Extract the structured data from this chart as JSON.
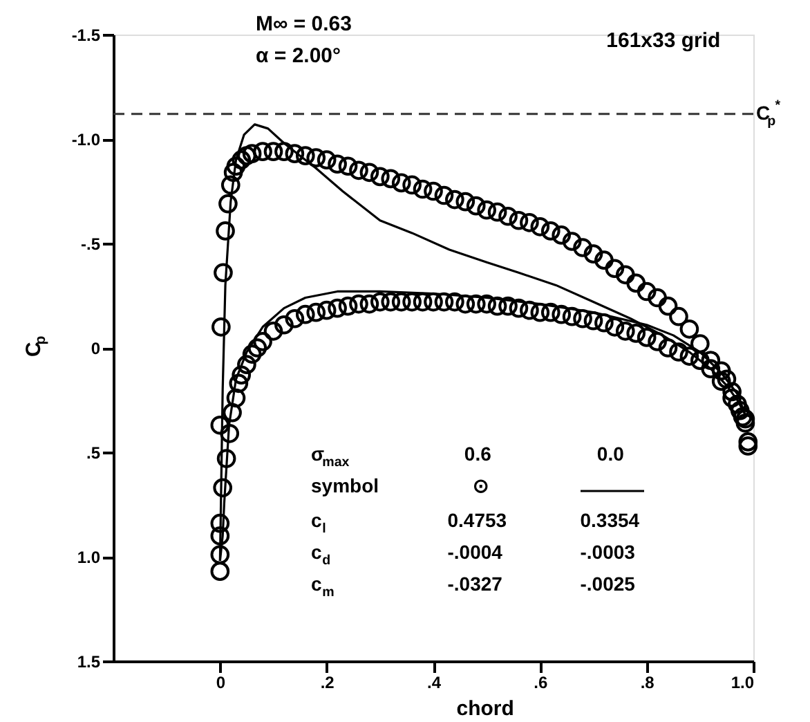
{
  "chart_data": {
    "type": "line",
    "xlabel": "chord",
    "ylabel": "C$_{p}$",
    "xlim": [
      -0.2,
      1.0
    ],
    "ylim": [
      1.5,
      -1.5
    ],
    "xticks": [
      {
        "value": 0,
        "label": "0"
      },
      {
        "value": 0.2,
        "label": ".2"
      },
      {
        "value": 0.4,
        "label": ".4"
      },
      {
        "value": 0.6,
        "label": ".6"
      },
      {
        "value": 0.8,
        "label": ".8"
      },
      {
        "value": 1.0,
        "label": "1.0"
      }
    ],
    "yticks": [
      {
        "value": -1.5,
        "label": "-1.5"
      },
      {
        "value": -1.0,
        "label": "-1.0"
      },
      {
        "value": -0.5,
        "label": "-.5"
      },
      {
        "value": 0,
        "label": "0"
      },
      {
        "value": 0.5,
        "label": ".5"
      },
      {
        "value": 1.0,
        "label": "1.0"
      },
      {
        "value": 1.5,
        "label": "1.5"
      }
    ],
    "grid": false,
    "ref_lines": [
      {
        "axis": "y",
        "value": -1.12,
        "label": "C$_{p}$$^{*}$",
        "line_style": "dashed",
        "color": "#333333"
      }
    ],
    "annotations": [
      "M∞ = 0.63",
      "α = 2.00°",
      "161x33 grid",
      "σ$_{max}$",
      "0.6",
      "0.0",
      "symbol",
      "⊙",
      "c$_{l}$",
      "0.4753",
      "0.3354",
      "c$_{d}$",
      "-.0004",
      "-.0003",
      "c$_{m}$",
      "-.0327",
      "-.0025"
    ],
    "series": [
      {
        "type": "scatter",
        "marker": "circle",
        "color": "#000000",
        "x": [
          0.99,
          0.99,
          0.985,
          0.98,
          0.97,
          0.96,
          0.95,
          0.94,
          0.92,
          0.9,
          0.88,
          0.86,
          0.84,
          0.82,
          0.8,
          0.78,
          0.76,
          0.74,
          0.72,
          0.7,
          0.68,
          0.66,
          0.64,
          0.62,
          0.6,
          0.58,
          0.56,
          0.54,
          0.52,
          0.5,
          0.48,
          0.46,
          0.44,
          0.42,
          0.4,
          0.38,
          0.36,
          0.34,
          0.32,
          0.3,
          0.28,
          0.26,
          0.24,
          0.22,
          0.2,
          0.18,
          0.16,
          0.14,
          0.12,
          0.1,
          0.08,
          0.06,
          0.05,
          0.04,
          0.03,
          0.025,
          0.02,
          0.015,
          0.01,
          0.006,
          0.002,
          0,
          0,
          0,
          0,
          0,
          0.005,
          0.012,
          0.018,
          0.023,
          0.03,
          0.035,
          0.04,
          0.05,
          0.06,
          0.07,
          0.08,
          0.1,
          0.12,
          0.14,
          0.16,
          0.18,
          0.2,
          0.22,
          0.24,
          0.26,
          0.28,
          0.3,
          0.32,
          0.34,
          0.36,
          0.38,
          0.4,
          0.42,
          0.44,
          0.46,
          0.48,
          0.5,
          0.52,
          0.54,
          0.56,
          0.58,
          0.6,
          0.62,
          0.64,
          0.66,
          0.68,
          0.7,
          0.72,
          0.74,
          0.76,
          0.78,
          0.8,
          0.82,
          0.84,
          0.86,
          0.88,
          0.9,
          0.92,
          0.94,
          0.96,
          0.975,
          0.985
        ],
        "values": [
          0.47,
          0.45,
          0.36,
          0.33,
          0.27,
          0.21,
          0.15,
          0.11,
          0.06,
          -0.02,
          -0.09,
          -0.15,
          -0.2,
          -0.24,
          -0.27,
          -0.31,
          -0.35,
          -0.38,
          -0.42,
          -0.45,
          -0.48,
          -0.51,
          -0.54,
          -0.56,
          -0.58,
          -0.6,
          -0.61,
          -0.63,
          -0.65,
          -0.66,
          -0.68,
          -0.7,
          -0.71,
          -0.73,
          -0.75,
          -0.76,
          -0.78,
          -0.79,
          -0.81,
          -0.82,
          -0.84,
          -0.85,
          -0.87,
          -0.88,
          -0.9,
          -0.91,
          -0.92,
          -0.93,
          -0.94,
          -0.94,
          -0.94,
          -0.93,
          -0.92,
          -0.9,
          -0.87,
          -0.84,
          -0.78,
          -0.69,
          -0.56,
          -0.36,
          -0.1,
          0.37,
          0.84,
          0.9,
          0.99,
          1.07,
          0.67,
          0.53,
          0.41,
          0.31,
          0.24,
          0.17,
          0.13,
          0.08,
          0.03,
          0.0,
          -0.03,
          -0.08,
          -0.11,
          -0.14,
          -0.16,
          -0.17,
          -0.18,
          -0.19,
          -0.2,
          -0.21,
          -0.21,
          -0.22,
          -0.22,
          -0.22,
          -0.22,
          -0.22,
          -0.22,
          -0.22,
          -0.22,
          -0.21,
          -0.21,
          -0.21,
          -0.2,
          -0.2,
          -0.19,
          -0.18,
          -0.17,
          -0.17,
          -0.16,
          -0.15,
          -0.14,
          -0.13,
          -0.12,
          -0.1,
          -0.08,
          -0.07,
          -0.05,
          -0.03,
          0.0,
          0.02,
          0.04,
          0.06,
          0.1,
          0.16,
          0.24,
          0.3,
          0.34
        ]
      },
      {
        "type": "line",
        "marker": "none",
        "line_style": "solid",
        "color": "#000000",
        "x": [
          0,
          0.002,
          0.005,
          0.01,
          0.02,
          0.03,
          0.045,
          0.065,
          0.09,
          0.12,
          0.15,
          0.18,
          0.23,
          0.3,
          0.36,
          0.43,
          0.5,
          0.56,
          0.63,
          0.7,
          0.77,
          0.83,
          0.88,
          0.92,
          0.95,
          0.97,
          0.985
        ],
        "values": [
          1.02,
          0.7,
          0.2,
          -0.3,
          -0.7,
          -0.9,
          -1.02,
          -1.07,
          -1.05,
          -0.98,
          -0.92,
          -0.86,
          -0.75,
          -0.61,
          -0.55,
          -0.47,
          -0.41,
          -0.36,
          -0.3,
          -0.22,
          -0.14,
          -0.06,
          0.02,
          0.1,
          0.18,
          0.25,
          0.32
        ]
      },
      {
        "type": "line",
        "marker": "none",
        "line_style": "solid",
        "color": "#000000",
        "x": [
          0,
          0.005,
          0.008,
          0.017,
          0.03,
          0.05,
          0.08,
          0.12,
          0.16,
          0.22,
          0.3,
          0.4,
          0.5,
          0.6,
          0.7,
          0.8,
          0.85,
          0.9,
          0.94,
          0.97,
          0.985
        ],
        "values": [
          1.02,
          0.9,
          0.74,
          0.37,
          0.15,
          0.02,
          -0.1,
          -0.19,
          -0.24,
          -0.27,
          -0.27,
          -0.26,
          -0.24,
          -0.21,
          -0.17,
          -0.11,
          -0.06,
          0.02,
          0.12,
          0.22,
          0.32
        ]
      }
    ]
  }
}
